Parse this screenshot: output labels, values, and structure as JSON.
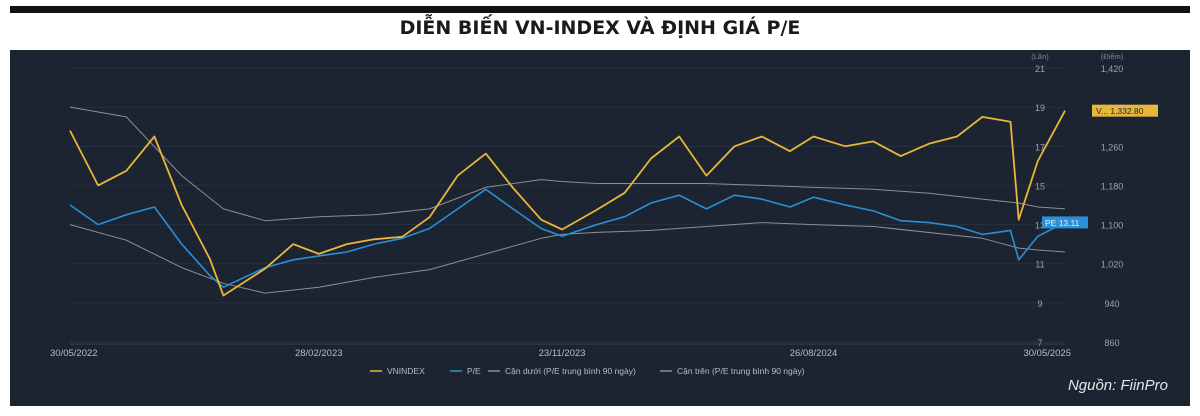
{
  "header": {
    "title": "DIỄN BIẾN VN-INDEX VÀ ĐỊNH GIÁ P/E"
  },
  "source": "Nguồn: FiinPro",
  "colors": {
    "vnindex": "#e8b63a",
    "pe": "#2a8fd6",
    "band_lower": "#8a8f96",
    "band_upper": "#8a8f96",
    "panel_bg": "#1b2430"
  },
  "chart_data": {
    "type": "line",
    "xlabel": "",
    "ylabel": "",
    "x_ticks": [
      "30/05/2022",
      "28/02/2023",
      "23/11/2023",
      "26/08/2024",
      "30/05/2025"
    ],
    "x_range": [
      "30/05/2022",
      "30/05/2025"
    ],
    "left_axis": {
      "unit": "(Lần)",
      "ylim": [
        7,
        21
      ],
      "ticks": [
        "21",
        "19",
        "17",
        "15",
        "13",
        "11",
        "9",
        "7"
      ]
    },
    "right_axis": {
      "unit": "(Điểm)",
      "ylim": [
        860,
        1420
      ],
      "ticks": [
        "1,420",
        "1,340",
        "1,260",
        "1,180",
        "1,100",
        "1,020",
        "940",
        "860"
      ]
    },
    "legend": [
      "VNINDEX",
      "P/E",
      "Cận dưới (P/E trung bình 90 ngày)",
      "Cận trên (P/E trung bình 90 ngày)"
    ],
    "legend_position": "bottom",
    "end_labels": {
      "vnindex": "V... 1,332.80",
      "pe": "PE 13.11"
    },
    "series": [
      {
        "name": "VNINDEX",
        "axis": "right",
        "x": [
          "30/05/2022",
          "30/06/2022",
          "31/07/2022",
          "31/08/2022",
          "30/09/2022",
          "31/10/2022",
          "15/11/2022",
          "31/12/2022",
          "31/01/2023",
          "28/02/2023",
          "31/03/2023",
          "30/04/2023",
          "31/05/2023",
          "30/06/2023",
          "31/07/2023",
          "31/08/2023",
          "30/09/2023",
          "31/10/2023",
          "23/11/2023",
          "31/12/2023",
          "31/01/2024",
          "29/02/2024",
          "31/03/2024",
          "30/04/2024",
          "31/05/2024",
          "30/06/2024",
          "31/07/2024",
          "26/08/2024",
          "30/09/2024",
          "31/10/2024",
          "30/11/2024",
          "31/12/2024",
          "31/01/2025",
          "28/02/2025",
          "31/03/2025",
          "09/04/2025",
          "30/04/2025",
          "30/05/2025"
        ],
        "values": [
          1292,
          1180,
          1210,
          1280,
          1140,
          1030,
          955,
          1010,
          1060,
          1040,
          1060,
          1070,
          1075,
          1115,
          1200,
          1245,
          1175,
          1110,
          1090,
          1130,
          1165,
          1235,
          1280,
          1200,
          1260,
          1280,
          1250,
          1280,
          1260,
          1270,
          1240,
          1265,
          1280,
          1320,
          1310,
          1110,
          1230,
          1332.8
        ]
      },
      {
        "name": "P/E",
        "axis": "left",
        "x": [
          "30/05/2022",
          "30/06/2022",
          "31/07/2022",
          "31/08/2022",
          "30/09/2022",
          "31/10/2022",
          "15/11/2022",
          "31/12/2022",
          "31/01/2023",
          "28/02/2023",
          "31/03/2023",
          "30/04/2023",
          "31/05/2023",
          "30/06/2023",
          "31/07/2023",
          "31/08/2023",
          "30/09/2023",
          "31/10/2023",
          "23/11/2023",
          "31/12/2023",
          "31/01/2024",
          "29/02/2024",
          "31/03/2024",
          "30/04/2024",
          "31/05/2024",
          "30/06/2024",
          "31/07/2024",
          "26/08/2024",
          "30/09/2024",
          "31/10/2024",
          "30/11/2024",
          "31/12/2024",
          "31/01/2025",
          "28/02/2025",
          "31/03/2025",
          "09/04/2025",
          "30/04/2025",
          "30/05/2025"
        ],
        "values": [
          14.0,
          13.0,
          13.5,
          13.9,
          12.0,
          10.4,
          9.8,
          10.8,
          11.2,
          11.4,
          11.6,
          12.0,
          12.3,
          12.8,
          13.8,
          14.8,
          13.8,
          12.8,
          12.4,
          13.0,
          13.4,
          14.1,
          14.5,
          13.8,
          14.5,
          14.3,
          13.9,
          14.4,
          14.0,
          13.7,
          13.2,
          13.1,
          12.9,
          12.5,
          12.7,
          11.2,
          12.4,
          13.11
        ]
      },
      {
        "name": "Cận dưới (P/E trung bình 90 ngày)",
        "axis": "left",
        "x": [
          "30/05/2022",
          "31/07/2022",
          "30/09/2022",
          "15/11/2022",
          "31/12/2022",
          "28/02/2023",
          "30/04/2023",
          "30/06/2023",
          "31/08/2023",
          "31/10/2023",
          "23/11/2023",
          "31/12/2023",
          "29/02/2024",
          "30/04/2024",
          "30/06/2024",
          "26/08/2024",
          "31/10/2024",
          "31/12024",
          "28/02/2025",
          "09/04/2025",
          "30/04/2025",
          "30/05/2025"
        ],
        "values": [
          13.0,
          12.2,
          10.8,
          10.0,
          9.5,
          9.8,
          10.3,
          10.7,
          11.5,
          12.3,
          12.5,
          12.6,
          12.7,
          12.9,
          13.1,
          13.0,
          12.9,
          12.6,
          12.3,
          11.8,
          11.7,
          11.6
        ]
      },
      {
        "name": "Cận trên (P/E trung bình 90 ngày)",
        "axis": "left",
        "x": [
          "30/05/2022",
          "31/07/2022",
          "30/09/2022",
          "15/11/2022",
          "31/12/2022",
          "28/02/2023",
          "30/04/2023",
          "30/06/2023",
          "31/08/2023",
          "31/10/2023",
          "23/11/2023",
          "31/12/2023",
          "29/02/2024",
          "30/04/2024",
          "30/06/2024",
          "26/08/2024",
          "31/10/2024",
          "31/12/2024",
          "28/02/2025",
          "09/04/2025",
          "30/04/2025",
          "30/05/2025"
        ],
        "values": [
          19.0,
          18.5,
          15.5,
          13.8,
          13.2,
          13.4,
          13.5,
          13.8,
          14.9,
          15.3,
          15.2,
          15.1,
          15.1,
          15.1,
          15.0,
          14.9,
          14.8,
          14.6,
          14.3,
          14.1,
          13.9,
          13.8
        ]
      }
    ]
  }
}
